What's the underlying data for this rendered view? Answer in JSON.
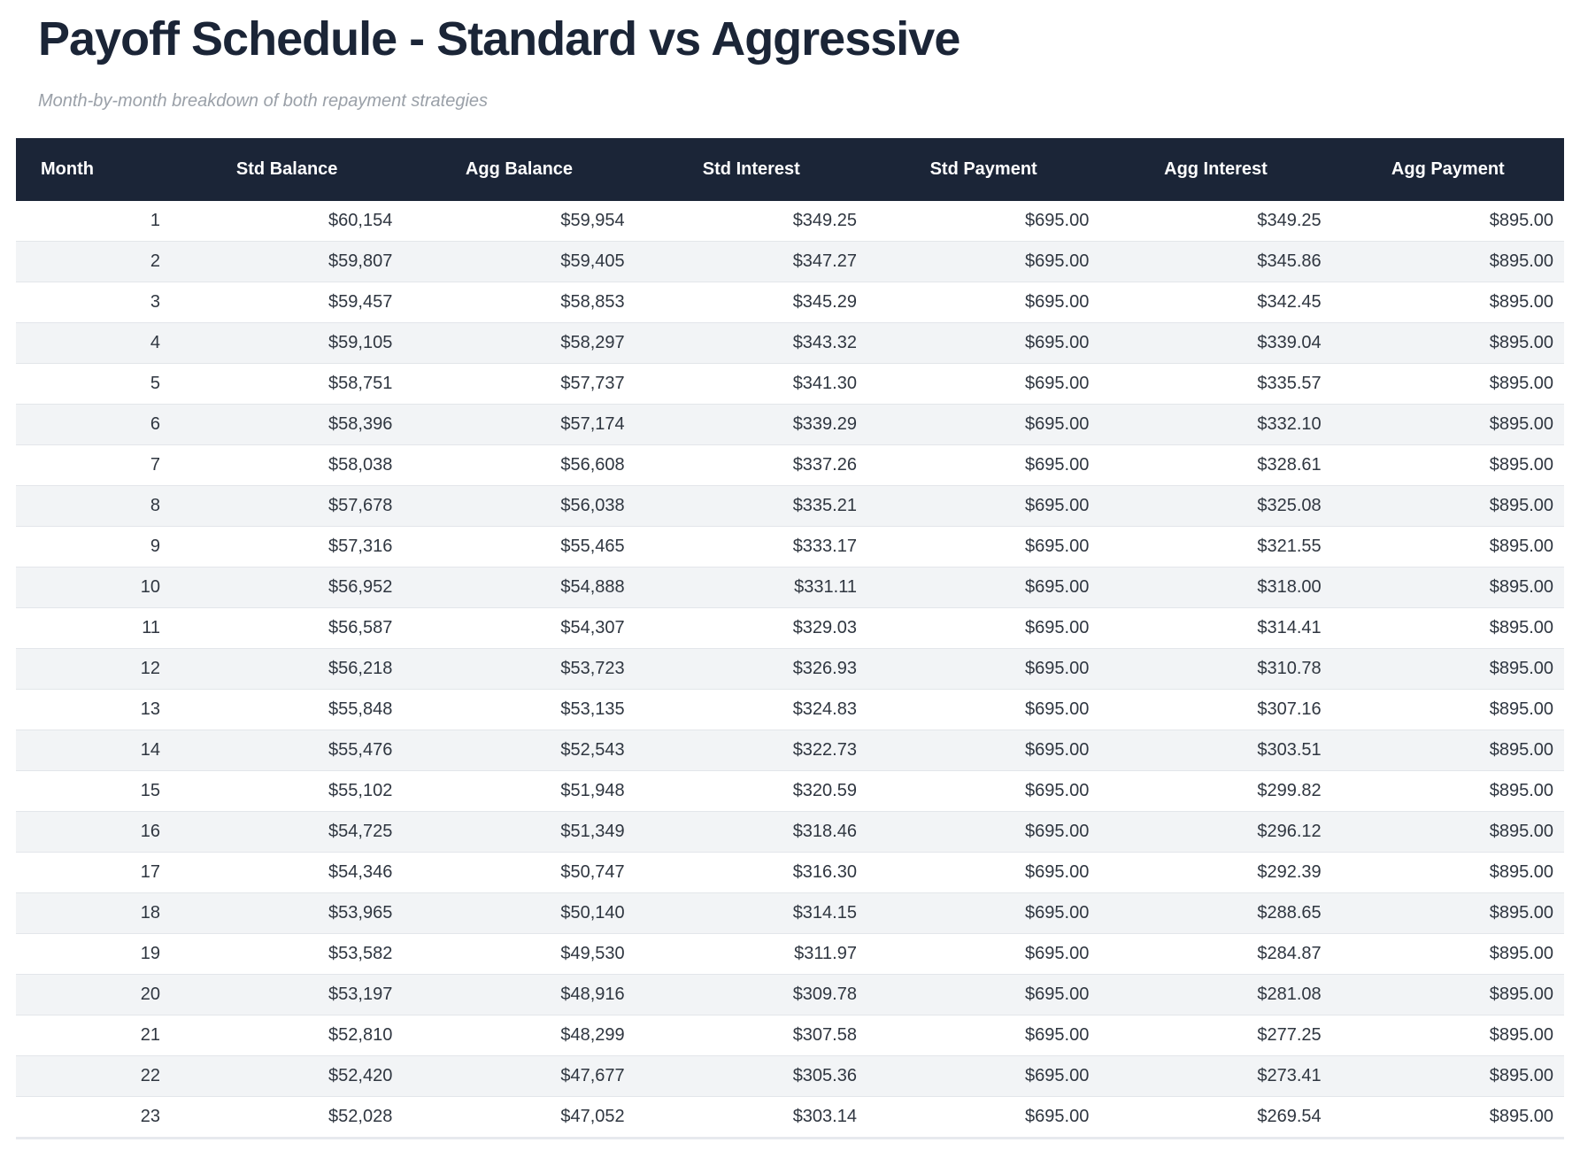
{
  "page": {
    "title": "Payoff Schedule - Standard vs Aggressive",
    "subtitle": "Month-by-month breakdown of both repayment strategies"
  },
  "colors": {
    "header_bg": "#1b2537",
    "header_text": "#ffffff",
    "title_text": "#1b2537",
    "subtitle_text": "#9aa0a8",
    "row_stripe": "#f2f4f6",
    "row_border": "#e3e6ea",
    "body_text": "#2f3640",
    "page_bg": "#ffffff"
  },
  "chart_data": {
    "type": "table",
    "title": "Payoff Schedule - Standard vs Aggressive",
    "subtitle": "Month-by-month breakdown of both repayment strategies",
    "columns": [
      "Month",
      "Std Balance",
      "Agg Balance",
      "Std Interest",
      "Std Payment",
      "Agg Interest",
      "Agg Payment"
    ],
    "rows": [
      [
        "1",
        "$60,154",
        "$59,954",
        "$349.25",
        "$695.00",
        "$349.25",
        "$895.00"
      ],
      [
        "2",
        "$59,807",
        "$59,405",
        "$347.27",
        "$695.00",
        "$345.86",
        "$895.00"
      ],
      [
        "3",
        "$59,457",
        "$58,853",
        "$345.29",
        "$695.00",
        "$342.45",
        "$895.00"
      ],
      [
        "4",
        "$59,105",
        "$58,297",
        "$343.32",
        "$695.00",
        "$339.04",
        "$895.00"
      ],
      [
        "5",
        "$58,751",
        "$57,737",
        "$341.30",
        "$695.00",
        "$335.57",
        "$895.00"
      ],
      [
        "6",
        "$58,396",
        "$57,174",
        "$339.29",
        "$695.00",
        "$332.10",
        "$895.00"
      ],
      [
        "7",
        "$58,038",
        "$56,608",
        "$337.26",
        "$695.00",
        "$328.61",
        "$895.00"
      ],
      [
        "8",
        "$57,678",
        "$56,038",
        "$335.21",
        "$695.00",
        "$325.08",
        "$895.00"
      ],
      [
        "9",
        "$57,316",
        "$55,465",
        "$333.17",
        "$695.00",
        "$321.55",
        "$895.00"
      ],
      [
        "10",
        "$56,952",
        "$54,888",
        "$331.11",
        "$695.00",
        "$318.00",
        "$895.00"
      ],
      [
        "11",
        "$56,587",
        "$54,307",
        "$329.03",
        "$695.00",
        "$314.41",
        "$895.00"
      ],
      [
        "12",
        "$56,218",
        "$53,723",
        "$326.93",
        "$695.00",
        "$310.78",
        "$895.00"
      ],
      [
        "13",
        "$55,848",
        "$53,135",
        "$324.83",
        "$695.00",
        "$307.16",
        "$895.00"
      ],
      [
        "14",
        "$55,476",
        "$52,543",
        "$322.73",
        "$695.00",
        "$303.51",
        "$895.00"
      ],
      [
        "15",
        "$55,102",
        "$51,948",
        "$320.59",
        "$695.00",
        "$299.82",
        "$895.00"
      ],
      [
        "16",
        "$54,725",
        "$51,349",
        "$318.46",
        "$695.00",
        "$296.12",
        "$895.00"
      ],
      [
        "17",
        "$54,346",
        "$50,747",
        "$316.30",
        "$695.00",
        "$292.39",
        "$895.00"
      ],
      [
        "18",
        "$53,965",
        "$50,140",
        "$314.15",
        "$695.00",
        "$288.65",
        "$895.00"
      ],
      [
        "19",
        "$53,582",
        "$49,530",
        "$311.97",
        "$695.00",
        "$284.87",
        "$895.00"
      ],
      [
        "20",
        "$53,197",
        "$48,916",
        "$309.78",
        "$695.00",
        "$281.08",
        "$895.00"
      ],
      [
        "21",
        "$52,810",
        "$48,299",
        "$307.58",
        "$695.00",
        "$277.25",
        "$895.00"
      ],
      [
        "22",
        "$52,420",
        "$47,677",
        "$305.36",
        "$695.00",
        "$273.41",
        "$895.00"
      ],
      [
        "23",
        "$52,028",
        "$47,052",
        "$303.14",
        "$695.00",
        "$269.54",
        "$895.00"
      ]
    ]
  }
}
